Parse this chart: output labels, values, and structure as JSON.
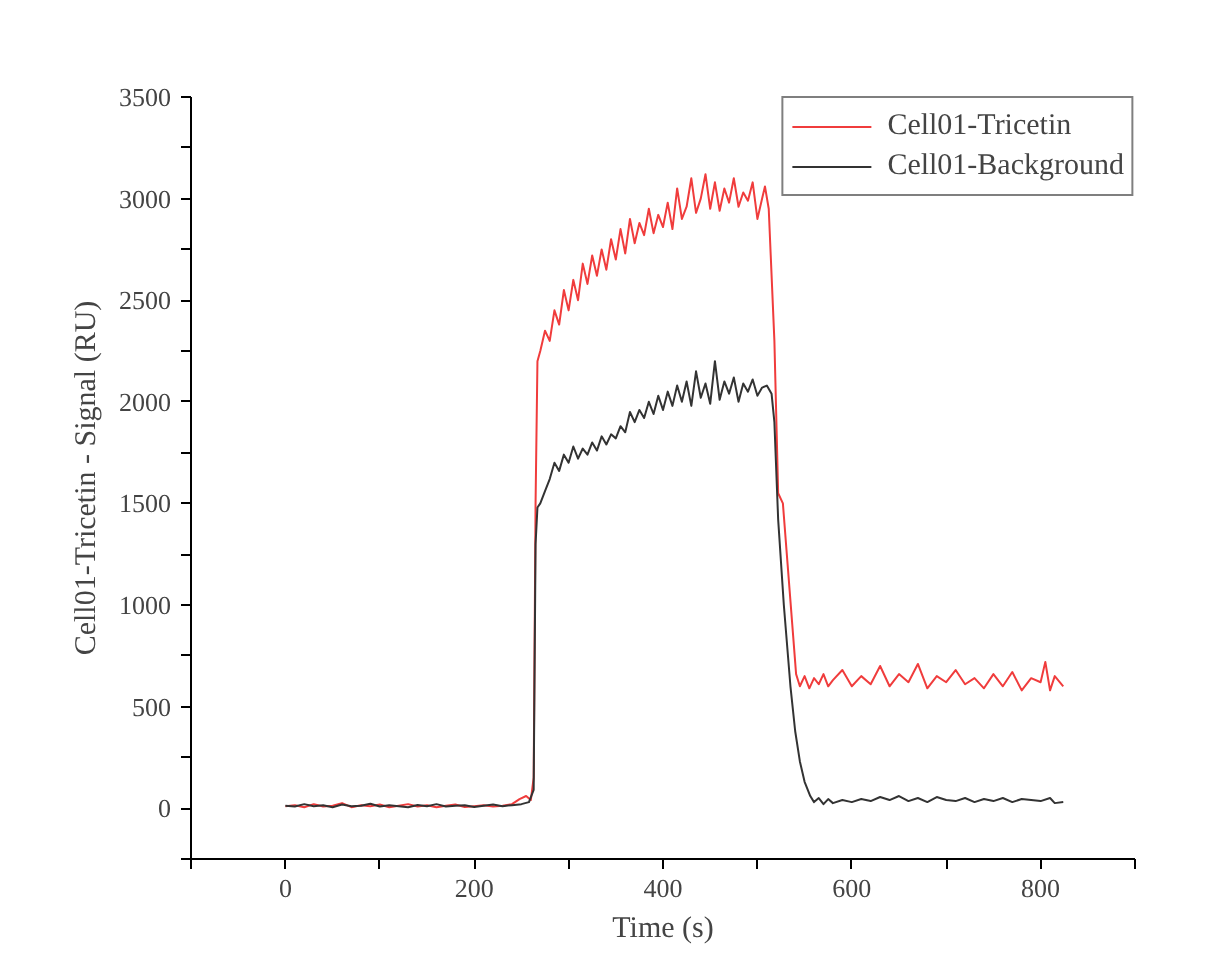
{
  "chart_data": {
    "type": "line",
    "xlabel": "Time (s)",
    "ylabel": "Cell01-Tricetin - Signal (RU)",
    "xlim": [
      -100,
      900
    ],
    "ylim": [
      -250,
      3500
    ],
    "xticks": [
      {
        "value": -100,
        "label": null
      },
      0,
      {
        "value": 100,
        "label": null
      },
      200,
      {
        "value": 300,
        "label": null
      },
      400,
      {
        "value": 500,
        "label": null
      },
      600,
      {
        "value": 700,
        "label": null
      },
      800,
      {
        "value": 900,
        "label": null
      }
    ],
    "yticks": [
      {
        "value": -250,
        "label": null
      },
      0,
      {
        "value": 250,
        "label": null
      },
      500,
      {
        "value": 750,
        "label": null
      },
      1000,
      {
        "value": 1250,
        "label": null
      },
      1500,
      {
        "value": 1750,
        "label": null
      },
      2000,
      {
        "value": 2250,
        "label": null
      },
      2500,
      {
        "value": 2750,
        "label": null
      },
      3000,
      {
        "value": 3250,
        "label": null
      },
      3500
    ],
    "grid": false,
    "legend": "top right",
    "marker": "none",
    "line_style": "solid",
    "series": [
      {
        "name": "Cell01-Tricetin",
        "color": "#f03c3c",
        "x": [
          0,
          10,
          20,
          30,
          40,
          50,
          60,
          70,
          80,
          90,
          100,
          110,
          120,
          130,
          140,
          150,
          160,
          170,
          180,
          190,
          200,
          210,
          220,
          230,
          240,
          248,
          255,
          260,
          263,
          265,
          267,
          270,
          275,
          280,
          285,
          290,
          295,
          300,
          305,
          310,
          315,
          320,
          325,
          330,
          335,
          340,
          345,
          350,
          355,
          360,
          365,
          370,
          375,
          380,
          385,
          390,
          395,
          400,
          405,
          410,
          415,
          420,
          425,
          430,
          435,
          440,
          445,
          450,
          455,
          460,
          465,
          470,
          475,
          480,
          485,
          490,
          495,
          500,
          505,
          508,
          512,
          518,
          522,
          527,
          532,
          537,
          541,
          545,
          550,
          555,
          560,
          565,
          570,
          575,
          580,
          590,
          600,
          610,
          620,
          630,
          640,
          650,
          660,
          670,
          680,
          690,
          700,
          710,
          720,
          730,
          740,
          750,
          760,
          770,
          780,
          790,
          800,
          805,
          810,
          815,
          824
        ],
        "values": [
          10,
          15,
          5,
          20,
          8,
          12,
          25,
          5,
          15,
          10,
          18,
          5,
          12,
          20,
          8,
          15,
          5,
          12,
          18,
          6,
          10,
          15,
          8,
          12,
          20,
          45,
          60,
          40,
          150,
          1500,
          2200,
          2250,
          2350,
          2300,
          2450,
          2380,
          2550,
          2450,
          2600,
          2500,
          2680,
          2580,
          2720,
          2620,
          2750,
          2650,
          2800,
          2700,
          2850,
          2730,
          2900,
          2780,
          2880,
          2820,
          2950,
          2830,
          2920,
          2860,
          2980,
          2850,
          3050,
          2900,
          2960,
          3100,
          2930,
          3000,
          3120,
          2950,
          3080,
          2940,
          3050,
          2980,
          3100,
          2960,
          3030,
          2990,
          3080,
          2900,
          3000,
          3060,
          2950,
          2300,
          1550,
          1500,
          1200,
          900,
          660,
          600,
          650,
          590,
          640,
          610,
          660,
          600,
          630,
          680,
          600,
          650,
          610,
          700,
          600,
          660,
          620,
          710,
          590,
          650,
          620,
          680,
          610,
          640,
          590,
          660,
          600,
          670,
          580,
          640,
          620,
          720,
          580,
          650,
          600
        ]
      },
      {
        "name": "Cell01-Background",
        "color": "#333333",
        "x": [
          0,
          10,
          20,
          30,
          40,
          50,
          60,
          70,
          80,
          90,
          100,
          110,
          120,
          130,
          140,
          150,
          160,
          170,
          180,
          190,
          200,
          210,
          220,
          230,
          240,
          250,
          258,
          263,
          265,
          267,
          270,
          275,
          280,
          285,
          290,
          295,
          300,
          305,
          310,
          315,
          320,
          325,
          330,
          335,
          340,
          345,
          350,
          355,
          360,
          365,
          370,
          375,
          380,
          385,
          390,
          395,
          400,
          405,
          410,
          415,
          420,
          425,
          430,
          435,
          440,
          445,
          450,
          455,
          460,
          465,
          470,
          475,
          480,
          485,
          490,
          495,
          500,
          505,
          510,
          515,
          518,
          522,
          528,
          535,
          540,
          545,
          550,
          556,
          560,
          565,
          570,
          575,
          580,
          590,
          600,
          610,
          620,
          630,
          640,
          650,
          660,
          670,
          680,
          690,
          700,
          710,
          720,
          730,
          740,
          750,
          760,
          770,
          780,
          790,
          800,
          810,
          815,
          824
        ],
        "values": [
          12,
          8,
          20,
          10,
          15,
          5,
          18,
          10,
          12,
          22,
          8,
          15,
          10,
          5,
          16,
          10,
          20,
          8,
          12,
          15,
          6,
          12,
          18,
          10,
          15,
          20,
          30,
          90,
          1300,
          1480,
          1500,
          1560,
          1620,
          1700,
          1660,
          1740,
          1700,
          1780,
          1720,
          1770,
          1740,
          1800,
          1760,
          1830,
          1790,
          1840,
          1820,
          1880,
          1850,
          1950,
          1900,
          1960,
          1920,
          2000,
          1940,
          2030,
          1960,
          2050,
          1980,
          2080,
          2000,
          2100,
          1980,
          2150,
          2020,
          2090,
          1990,
          2200,
          2010,
          2100,
          2040,
          2120,
          2000,
          2090,
          2050,
          2110,
          2030,
          2070,
          2080,
          2040,
          1900,
          1420,
          1000,
          600,
          380,
          230,
          130,
          60,
          30,
          50,
          20,
          45,
          25,
          40,
          30,
          45,
          35,
          55,
          40,
          60,
          35,
          50,
          30,
          55,
          40,
          35,
          50,
          30,
          45,
          35,
          50,
          30,
          45,
          40,
          35,
          50,
          25,
          30
        ]
      }
    ]
  }
}
